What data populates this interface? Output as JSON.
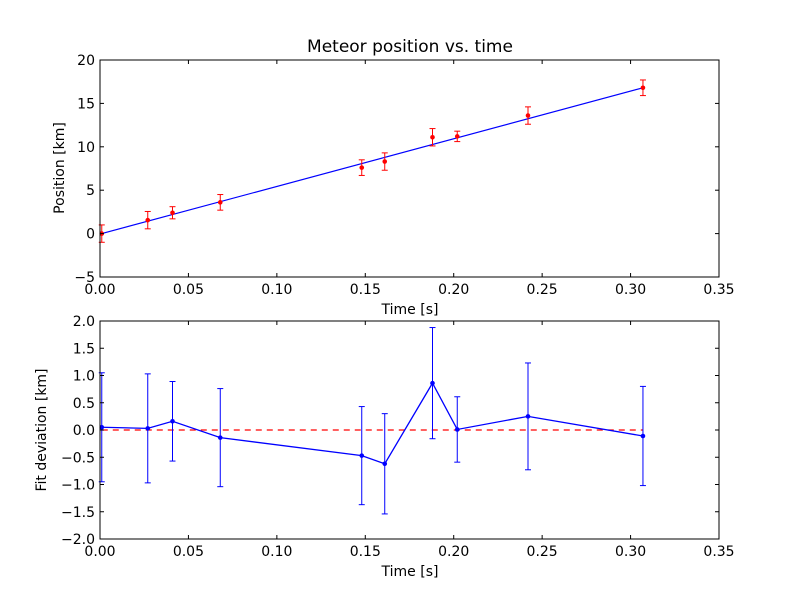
{
  "chart_data": [
    {
      "type": "scatter",
      "title": "Meteor position vs. time",
      "xlabel": "Time [s]",
      "ylabel": "Position [km]",
      "xlim": [
        0.0,
        0.35
      ],
      "ylim": [
        -5,
        20
      ],
      "x_ticks": [
        "0.00",
        "0.05",
        "0.10",
        "0.15",
        "0.20",
        "0.25",
        "0.30",
        "0.35"
      ],
      "y_ticks": [
        "−5",
        "0",
        "5",
        "10",
        "15",
        "20"
      ],
      "x_tick_values": [
        0.0,
        0.05,
        0.1,
        0.15,
        0.2,
        0.25,
        0.3,
        0.35
      ],
      "y_tick_values": [
        -5,
        0,
        5,
        10,
        15,
        20
      ],
      "grid": false,
      "colors": {
        "points": "#ff0000",
        "fit": "#0000ff"
      },
      "series": [
        {
          "kind": "points-with-error-bars",
          "x": [
            0.001,
            0.027,
            0.041,
            0.068,
            0.148,
            0.161,
            0.188,
            0.202,
            0.242,
            0.307
          ],
          "y": [
            0.0,
            1.55,
            2.4,
            3.6,
            7.6,
            8.3,
            11.1,
            11.2,
            13.6,
            16.8
          ],
          "yerr": [
            1.0,
            1.0,
            0.7,
            0.9,
            0.9,
            1.0,
            1.0,
            0.6,
            1.0,
            0.9
          ]
        },
        {
          "kind": "fit-line",
          "x": [
            0.001,
            0.307
          ],
          "y": [
            0.0,
            16.8
          ]
        }
      ]
    },
    {
      "type": "line",
      "title": "",
      "xlabel": "Time [s]",
      "ylabel": "Fit deviation [km]",
      "xlim": [
        0.0,
        0.35
      ],
      "ylim": [
        -2.0,
        2.0
      ],
      "x_ticks": [
        "0.00",
        "0.05",
        "0.10",
        "0.15",
        "0.20",
        "0.25",
        "0.30",
        "0.35"
      ],
      "y_ticks": [
        "−2.0",
        "−1.5",
        "−1.0",
        "−0.5",
        "0.0",
        "0.5",
        "1.0",
        "1.5",
        "2.0"
      ],
      "x_tick_values": [
        0.0,
        0.05,
        0.1,
        0.15,
        0.2,
        0.25,
        0.3,
        0.35
      ],
      "y_tick_values": [
        -2.0,
        -1.5,
        -1.0,
        -0.5,
        0.0,
        0.5,
        1.0,
        1.5,
        2.0
      ],
      "grid": false,
      "colors": {
        "residuals": "#0000ff",
        "zero_line": "#ff0000"
      },
      "series": [
        {
          "kind": "line-with-error-bars",
          "x": [
            0.001,
            0.027,
            0.041,
            0.068,
            0.148,
            0.161,
            0.188,
            0.202,
            0.242,
            0.307
          ],
          "y": [
            0.05,
            0.03,
            0.16,
            -0.14,
            -0.47,
            -0.62,
            0.86,
            0.01,
            0.25,
            -0.11
          ],
          "yerr": [
            1.0,
            1.0,
            0.73,
            0.9,
            0.9,
            0.92,
            1.02,
            0.6,
            0.98,
            0.91
          ]
        },
        {
          "kind": "zero-reference-dashed",
          "x": [
            0.001,
            0.307
          ],
          "y": [
            0.0,
            0.0
          ]
        }
      ]
    }
  ]
}
